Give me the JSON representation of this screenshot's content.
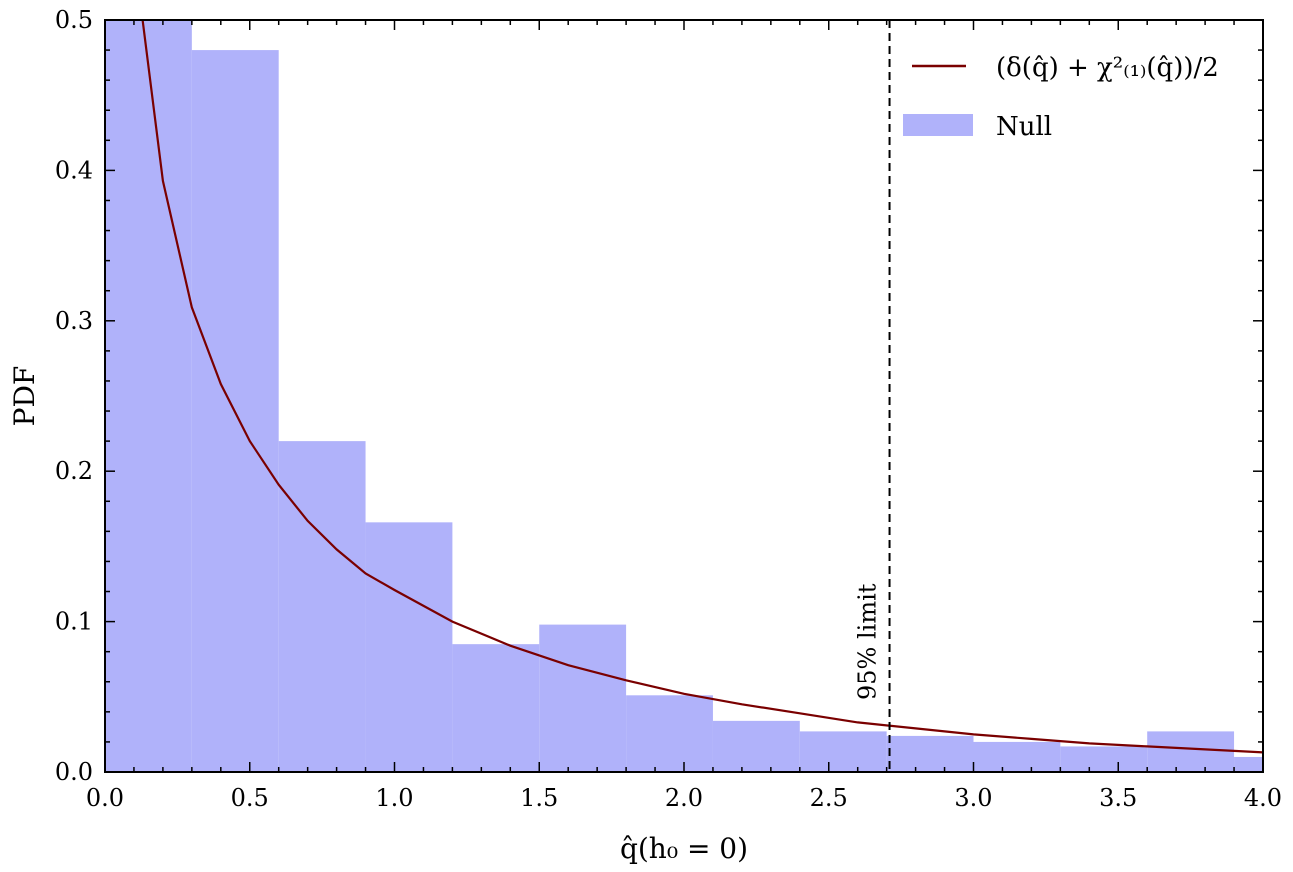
{
  "chart_data": {
    "type": "bar",
    "xlabel": "q̂(h₀ = 0)",
    "ylabel": "PDF",
    "xlim": [
      0.0,
      4.0
    ],
    "ylim": [
      0.0,
      0.5
    ],
    "x_ticks": [
      "0.0",
      "0.5",
      "1.0",
      "1.5",
      "2.0",
      "2.5",
      "3.0",
      "3.5",
      "4.0"
    ],
    "y_ticks": [
      "0.0",
      "0.1",
      "0.2",
      "0.3",
      "0.4",
      "0.5"
    ],
    "histogram": {
      "name": "Null",
      "color": "#b0b2fa",
      "bin_edges": [
        0.0,
        0.3,
        0.6,
        0.9,
        1.2,
        1.5,
        1.8,
        2.1,
        2.4,
        2.7,
        3.0,
        3.3,
        3.6,
        3.9,
        4.2
      ],
      "values": [
        0.5,
        0.48,
        0.22,
        0.166,
        0.085,
        0.098,
        0.051,
        0.034,
        0.027,
        0.024,
        0.02,
        0.017,
        0.027,
        0.01
      ]
    },
    "curve": {
      "name": "(δ(q̂) + χ²₍₁₎(q̂))/2",
      "color": "#7a0000",
      "x": [
        0.13,
        0.2,
        0.3,
        0.4,
        0.5,
        0.6,
        0.7,
        0.8,
        0.9,
        1.0,
        1.2,
        1.4,
        1.6,
        1.8,
        2.0,
        2.2,
        2.4,
        2.6,
        2.8,
        3.0,
        3.2,
        3.4,
        3.6,
        3.8,
        4.0
      ],
      "y": [
        0.502,
        0.393,
        0.309,
        0.258,
        0.22,
        0.191,
        0.167,
        0.148,
        0.132,
        0.121,
        0.1,
        0.084,
        0.071,
        0.061,
        0.052,
        0.045,
        0.039,
        0.033,
        0.029,
        0.025,
        0.022,
        0.019,
        0.017,
        0.015,
        0.013
      ]
    },
    "limit_line": {
      "x": 2.71,
      "label": "95% limit",
      "style": "dashed"
    },
    "legend": {
      "placement": "top-right",
      "entries": [
        {
          "label": "(δ(q̂) + χ²₍₁₎(q̂))/2",
          "kind": "line"
        },
        {
          "label": "Null",
          "kind": "patch"
        }
      ]
    },
    "grid": false
  }
}
